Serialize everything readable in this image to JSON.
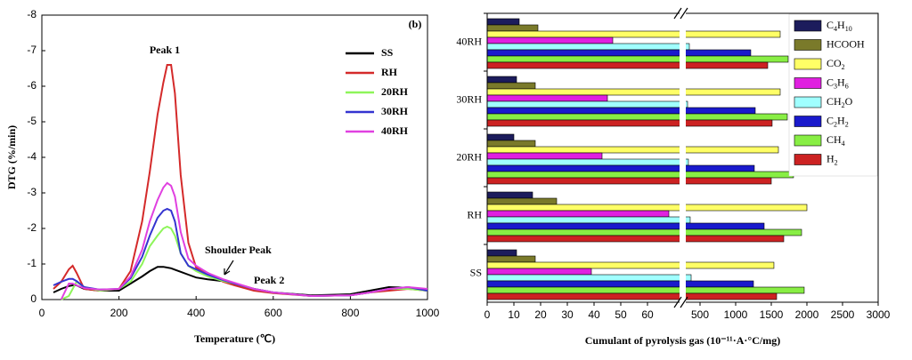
{
  "chart_data": [
    {
      "type": "line",
      "ylabel": "DTG (%/min)",
      "xlabel": "Temperature (℃)",
      "xlim": [
        0,
        1000
      ],
      "xticks": [
        0,
        200,
        400,
        600,
        800,
        1000
      ],
      "ylim": [
        0,
        -8
      ],
      "yticks": [
        0,
        -1,
        -2,
        -3,
        -4,
        -5,
        -6,
        -7,
        -8
      ],
      "legend": "upper right",
      "annotations": [
        "Peak 1",
        "Shoulder Peak",
        "Peak 2",
        "(b)"
      ],
      "x": [
        30,
        50,
        70,
        80,
        90,
        110,
        150,
        200,
        230,
        260,
        280,
        300,
        315,
        325,
        335,
        345,
        360,
        380,
        400,
        430,
        470,
        500,
        550,
        600,
        700,
        800,
        850,
        900,
        950,
        1000
      ],
      "series": [
        {
          "name": "SS",
          "color": "#000000",
          "values": [
            -0.2,
            -0.3,
            -0.38,
            -0.4,
            -0.4,
            -0.3,
            -0.25,
            -0.25,
            -0.45,
            -0.65,
            -0.8,
            -0.92,
            -0.92,
            -0.9,
            -0.88,
            -0.84,
            -0.78,
            -0.7,
            -0.62,
            -0.57,
            -0.52,
            -0.45,
            -0.3,
            -0.2,
            -0.12,
            -0.15,
            -0.25,
            -0.35,
            -0.33,
            -0.25
          ]
        },
        {
          "name": "RH",
          "color": "#d42a2a",
          "values": [
            -0.3,
            -0.5,
            -0.85,
            -0.95,
            -0.75,
            -0.3,
            -0.25,
            -0.3,
            -0.8,
            -2.2,
            -3.6,
            -5.2,
            -6.1,
            -6.6,
            -6.6,
            -5.8,
            -3.5,
            -1.6,
            -0.9,
            -0.75,
            -0.5,
            -0.4,
            -0.25,
            -0.18,
            -0.1,
            -0.12,
            -0.2,
            -0.25,
            -0.3,
            -0.25
          ]
        },
        {
          "name": "20RH",
          "color": "#8ef55a",
          "values": [
            null,
            0,
            -0.1,
            -0.3,
            -0.5,
            -0.35,
            -0.25,
            -0.3,
            -0.5,
            -1.0,
            -1.5,
            -1.8,
            -2.0,
            -2.05,
            -2.0,
            -1.8,
            -1.3,
            -0.95,
            -0.8,
            -0.65,
            -0.52,
            -0.45,
            -0.3,
            -0.2,
            -0.1,
            -0.12,
            -0.2,
            -0.3,
            -0.3,
            -0.25
          ]
        },
        {
          "name": "30RH",
          "color": "#3434d0",
          "values": [
            -0.4,
            -0.5,
            -0.58,
            -0.58,
            -0.52,
            -0.35,
            -0.28,
            -0.3,
            -0.6,
            -1.2,
            -1.8,
            -2.3,
            -2.5,
            -2.55,
            -2.5,
            -2.2,
            -1.3,
            -0.95,
            -0.85,
            -0.7,
            -0.55,
            -0.45,
            -0.3,
            -0.2,
            -0.1,
            -0.12,
            -0.2,
            -0.3,
            -0.35,
            -0.25
          ]
        },
        {
          "name": "40RH",
          "color": "#e040e0",
          "values": [
            null,
            0,
            -0.45,
            -0.45,
            -0.4,
            -0.32,
            -0.28,
            -0.3,
            -0.65,
            -1.4,
            -2.2,
            -2.8,
            -3.15,
            -3.28,
            -3.2,
            -2.9,
            -1.9,
            -1.15,
            -0.95,
            -0.75,
            -0.57,
            -0.47,
            -0.3,
            -0.2,
            -0.1,
            -0.12,
            -0.2,
            -0.3,
            -0.35,
            -0.3
          ]
        }
      ]
    },
    {
      "type": "barh",
      "xlabel": "Cumulant of pyrolysis gas (10⁻¹¹·A·°C/mg)",
      "xlim": [
        0,
        3000
      ],
      "xbreak": [
        72,
        300
      ],
      "xticks": [
        0,
        10,
        20,
        30,
        40,
        50,
        60,
        500,
        1000,
        1500,
        2000,
        2500,
        3000
      ],
      "legend": "upper right",
      "categories": [
        "SS",
        "RH",
        "20RH",
        "30RH",
        "40RH"
      ],
      "series": [
        {
          "name": "C4H10",
          "color": "#1c1c5c",
          "values": [
            11,
            17,
            10,
            11,
            12
          ]
        },
        {
          "name": "HCOOH",
          "color": "#7a7a2a",
          "values": [
            18,
            26,
            18,
            18,
            19
          ]
        },
        {
          "name": "CO2",
          "color": "#ffff66",
          "values": [
            1537,
            2000,
            1600,
            1625,
            1625
          ]
        },
        {
          "name": "C3H6",
          "color": "#e020e0",
          "values": [
            39,
            68,
            43,
            45,
            47
          ]
        },
        {
          "name": "CH2O",
          "color": "#a0ffff",
          "values": [
            375,
            362,
            337,
            325,
            350
          ]
        },
        {
          "name": "C2H2",
          "color": "#1a1acc",
          "values": [
            1250,
            1400,
            1262,
            1275,
            1212
          ]
        },
        {
          "name": "CH4",
          "color": "#88ee44",
          "values": [
            1962,
            1925,
            1812,
            1725,
            1737
          ]
        },
        {
          "name": "H2",
          "color": "#cc2222",
          "values": [
            1575,
            1675,
            1500,
            1512,
            1450
          ]
        }
      ]
    }
  ]
}
